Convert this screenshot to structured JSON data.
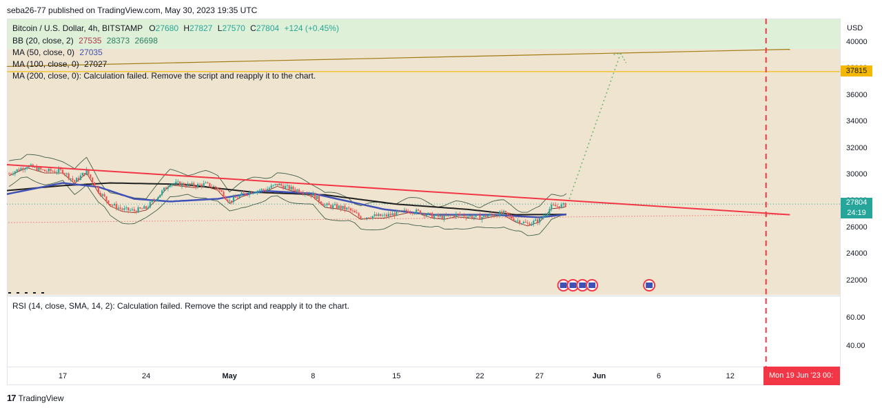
{
  "header": {
    "published": "seba26-77 published on TradingView.com, May 30, 2023 19:35 UTC"
  },
  "legend": {
    "symbol": "Bitcoin / U.S. Dollar, 4h, BITSTAMP",
    "o_label": "O",
    "o": "27680",
    "h_label": "H",
    "h": "27827",
    "l_label": "L",
    "l": "27570",
    "c_label": "C",
    "c": "27804",
    "change": "+124 (+0.45%)",
    "bb_label": "BB (20, close, 2)",
    "bb_basis": "27535",
    "bb_upper": "28373",
    "bb_lower": "26698",
    "ma50_label": "MA (50, close, 0)",
    "ma50": "27035",
    "ma100_label": "MA (100, close, 0)",
    "ma100": "27027",
    "ma200_label": "MA (200, close, 0): Calculation failed. Remove the script and reapply it to the chart."
  },
  "rsi": {
    "label": "RSI (14, close, SMA, 14, 2): Calculation failed. Remove the script and reapply it to the chart."
  },
  "price_axis": {
    "currency": "USD"
  },
  "badges": {
    "target": "37815",
    "last_price": "27804",
    "countdown": "24:19"
  },
  "time_axis": {
    "crosshair_date": "Mon 19 Jun '23  00:"
  },
  "footer": {
    "brand": "TradingView"
  },
  "colors": {
    "bull": "#26a69a",
    "bear": "#ef5350",
    "trend": "#f23645",
    "ma50": "#3f51b5",
    "ma100": "#1f1f1f",
    "bb": "#3f5f4a",
    "target": "#f5b800",
    "projection": "#66bb6a"
  },
  "chart_data": {
    "type": "candlestick",
    "title": "Bitcoin / U.S. Dollar, 4h, BITSTAMP",
    "ylabel": "USD",
    "ylim": [
      21000,
      41500
    ],
    "yticks": [
      22000,
      24000,
      26000,
      28000,
      30000,
      32000,
      34000,
      36000,
      38000,
      40000
    ],
    "rsi_ticks": [
      40.0,
      60.0
    ],
    "xticks": [
      {
        "label": "17",
        "day": 0,
        "bold": false
      },
      {
        "label": "24",
        "day": 7,
        "bold": false
      },
      {
        "label": "May",
        "day": 14,
        "bold": true
      },
      {
        "label": "8",
        "day": 21,
        "bold": false
      },
      {
        "label": "15",
        "day": 28,
        "bold": false
      },
      {
        "label": "22",
        "day": 35,
        "bold": false
      },
      {
        "label": "27",
        "day": 40,
        "bold": false
      },
      {
        "label": "Jun",
        "day": 45,
        "bold": true
      },
      {
        "label": "6",
        "day": 50,
        "bold": false
      },
      {
        "label": "12",
        "day": 56,
        "bold": false
      }
    ],
    "close_by_day": [
      {
        "day": -4.5,
        "price": 30100
      },
      {
        "day": -3,
        "price": 30700
      },
      {
        "day": -1.5,
        "price": 30300
      },
      {
        "day": 0,
        "price": 30300
      },
      {
        "day": 1,
        "price": 29500
      },
      {
        "day": 2,
        "price": 30300
      },
      {
        "day": 3,
        "price": 28800
      },
      {
        "day": 4,
        "price": 27800
      },
      {
        "day": 5,
        "price": 27400
      },
      {
        "day": 6,
        "price": 27300
      },
      {
        "day": 7,
        "price": 27500
      },
      {
        "day": 8,
        "price": 28400
      },
      {
        "day": 9,
        "price": 29400
      },
      {
        "day": 10,
        "price": 29300
      },
      {
        "day": 11,
        "price": 29200
      },
      {
        "day": 12,
        "price": 29300
      },
      {
        "day": 13,
        "price": 29000
      },
      {
        "day": 14,
        "price": 28000
      },
      {
        "day": 15,
        "price": 28500
      },
      {
        "day": 16,
        "price": 28800
      },
      {
        "day": 17,
        "price": 28900
      },
      {
        "day": 18,
        "price": 29300
      },
      {
        "day": 19,
        "price": 29000
      },
      {
        "day": 20,
        "price": 28800
      },
      {
        "day": 21,
        "price": 28500
      },
      {
        "day": 22,
        "price": 27700
      },
      {
        "day": 23,
        "price": 27600
      },
      {
        "day": 24,
        "price": 27400
      },
      {
        "day": 25,
        "price": 26800
      },
      {
        "day": 26,
        "price": 26900
      },
      {
        "day": 27,
        "price": 26900
      },
      {
        "day": 28,
        "price": 27100
      },
      {
        "day": 29,
        "price": 27300
      },
      {
        "day": 30,
        "price": 27200
      },
      {
        "day": 31,
        "price": 26900
      },
      {
        "day": 32,
        "price": 26800
      },
      {
        "day": 33,
        "price": 27000
      },
      {
        "day": 34,
        "price": 26900
      },
      {
        "day": 35,
        "price": 26800
      },
      {
        "day": 36,
        "price": 27000
      },
      {
        "day": 37,
        "price": 27100
      },
      {
        "day": 38,
        "price": 26600
      },
      {
        "day": 39,
        "price": 26300
      },
      {
        "day": 40,
        "price": 26600
      },
      {
        "day": 41,
        "price": 27600
      },
      {
        "day": 42,
        "price": 27700
      },
      {
        "day": 42.3,
        "price": 27800
      }
    ],
    "ma50_by_day": [
      {
        "day": -5,
        "price": 28500
      },
      {
        "day": 0,
        "price": 29400
      },
      {
        "day": 3,
        "price": 29100
      },
      {
        "day": 6,
        "price": 28200
      },
      {
        "day": 9,
        "price": 28000
      },
      {
        "day": 13,
        "price": 28200
      },
      {
        "day": 17,
        "price": 28800
      },
      {
        "day": 21,
        "price": 28600
      },
      {
        "day": 24,
        "price": 28000
      },
      {
        "day": 27,
        "price": 27400
      },
      {
        "day": 31,
        "price": 27000
      },
      {
        "day": 36,
        "price": 27000
      },
      {
        "day": 40,
        "price": 26800
      },
      {
        "day": 42.3,
        "price": 27035
      }
    ],
    "ma100_by_day": [
      {
        "day": -5,
        "price": 28800
      },
      {
        "day": 0,
        "price": 29200
      },
      {
        "day": 4,
        "price": 29400
      },
      {
        "day": 10,
        "price": 29300
      },
      {
        "day": 16,
        "price": 28700
      },
      {
        "day": 22,
        "price": 28500
      },
      {
        "day": 28,
        "price": 27800
      },
      {
        "day": 34,
        "price": 27400
      },
      {
        "day": 38,
        "price": 27000
      },
      {
        "day": 42.3,
        "price": 27027
      }
    ],
    "trendline": {
      "from": {
        "day": -5,
        "price": 30800
      },
      "to": {
        "day": 61,
        "price": 27000
      }
    },
    "rising_line": {
      "from": {
        "day": -5,
        "price": 38200
      },
      "to": {
        "day": 61,
        "price": 39500
      }
    },
    "target_level": 37815,
    "dotted_level": {
      "from": {
        "day": -5,
        "price": 26400
      },
      "to": {
        "day": 61,
        "price": 27000
      }
    },
    "projection": {
      "from": {
        "day": 42.5,
        "price": 28200
      },
      "to": {
        "day": 46.8,
        "price": 39200
      }
    },
    "event_day": 59,
    "events": [
      {
        "day": 42.0
      },
      {
        "day": 42.8
      },
      {
        "day": 43.6
      },
      {
        "day": 44.4
      },
      {
        "day": 49.2
      }
    ],
    "last_price": 27804
  }
}
